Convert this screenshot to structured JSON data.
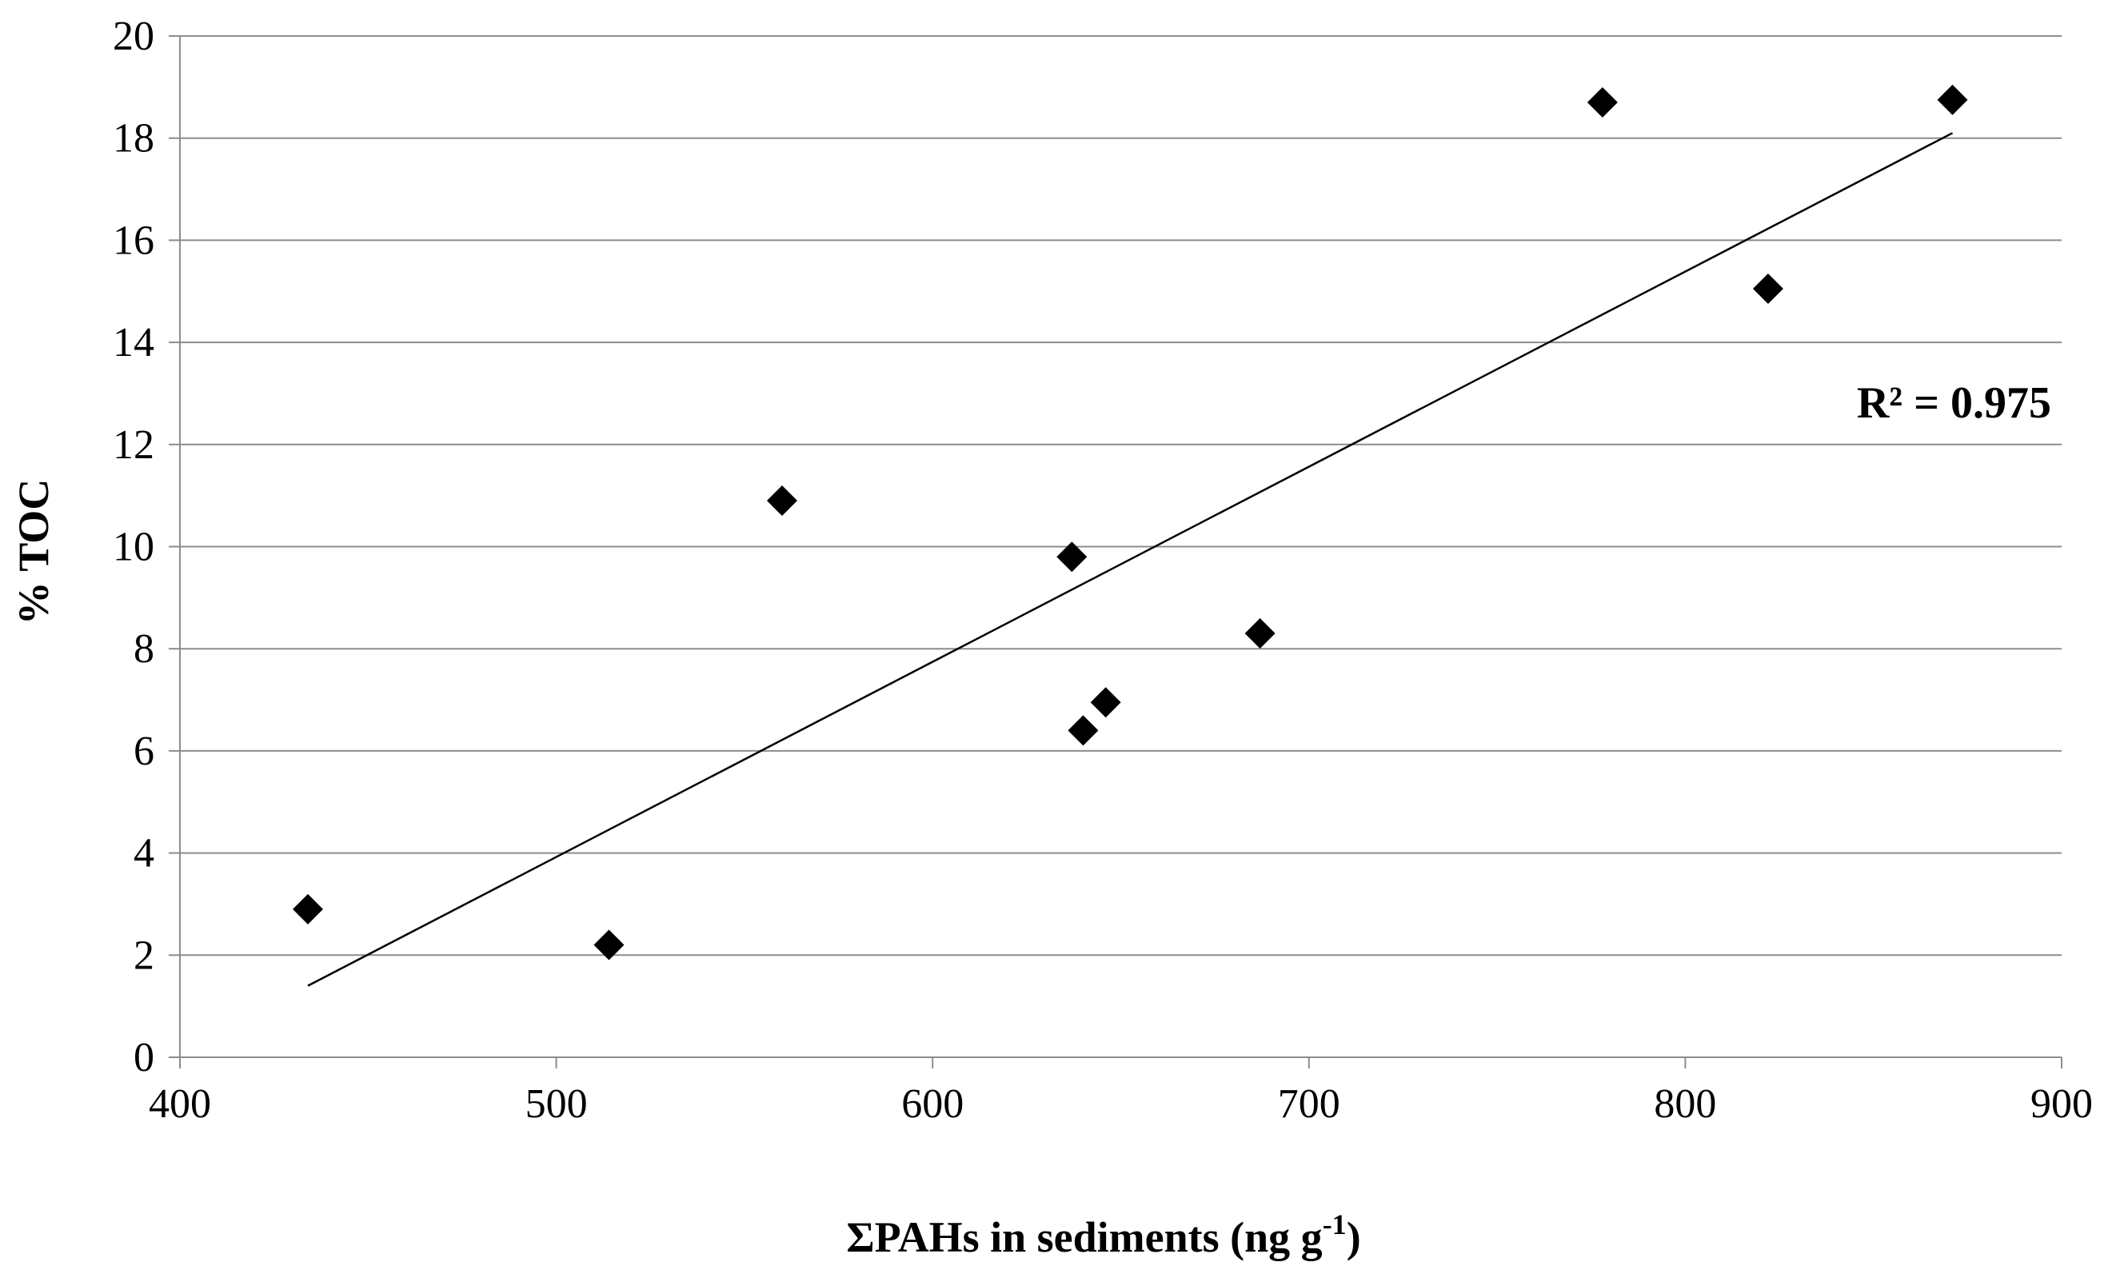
{
  "chart_data": {
    "type": "scatter",
    "xlabel": "ΣPAHs in sediments (ng g",
    "xlabel_sup": "-1",
    "xlabel_close": ")",
    "ylabel": "% TOC",
    "xlim": [
      400,
      900
    ],
    "ylim": [
      0,
      20
    ],
    "x_ticks": [
      400,
      500,
      600,
      700,
      800,
      900
    ],
    "y_ticks": [
      0,
      2,
      4,
      6,
      8,
      10,
      12,
      14,
      16,
      18,
      20
    ],
    "grid": "horizontal",
    "legend": "none",
    "marker": "diamond",
    "marker_color": "#000000",
    "points": [
      {
        "x": 434,
        "y": 2.9
      },
      {
        "x": 514,
        "y": 2.2
      },
      {
        "x": 560,
        "y": 10.9
      },
      {
        "x": 637,
        "y": 9.8
      },
      {
        "x": 640,
        "y": 6.4
      },
      {
        "x": 646,
        "y": 6.95
      },
      {
        "x": 687,
        "y": 8.3
      },
      {
        "x": 778,
        "y": 18.7
      },
      {
        "x": 822,
        "y": 15.05
      },
      {
        "x": 871,
        "y": 18.75
      }
    ],
    "trendline": {
      "x": [
        434,
        871
      ],
      "y": [
        1.4,
        18.1
      ],
      "color": "#000000"
    },
    "annotation": "R² = 0.975"
  }
}
